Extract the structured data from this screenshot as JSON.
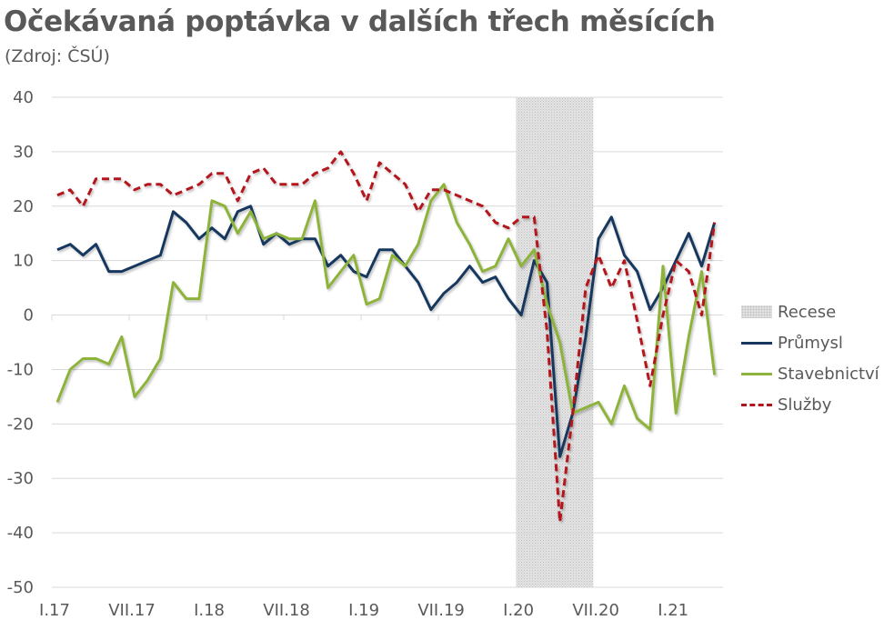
{
  "header": {
    "title": "Očekávaná poptávka v dalších třech měsících",
    "subtitle": "(Zdroj: ČSÚ)"
  },
  "legend": {
    "items": [
      {
        "key": "recese",
        "label": "Recese"
      },
      {
        "key": "prumysl",
        "label": "Průmysl"
      },
      {
        "key": "stavebnictvi",
        "label": "Stavebnictví"
      },
      {
        "key": "sluzby",
        "label": "Služby"
      }
    ]
  },
  "colors": {
    "prumysl": "#17375e",
    "stavebnictvi": "#8db33a",
    "sluzby": "#b3131b",
    "grid": "#d9d9d9",
    "recession_fill": "#e0e0e0",
    "text": "#595959"
  },
  "chart_data": {
    "type": "line",
    "title": "Očekávaná poptávka v dalších třech měsících",
    "subtitle": "(Zdroj: ČSÚ)",
    "xlabel": "",
    "ylabel": "",
    "ylim": [
      -50,
      40
    ],
    "yticks": [
      40,
      30,
      20,
      10,
      0,
      -10,
      -20,
      -30,
      -40,
      -50
    ],
    "grid": true,
    "legend_position": "right",
    "x_tick_labels": [
      "I.17",
      "VII.17",
      "I.18",
      "VII.18",
      "I.19",
      "VII.19",
      "I.20",
      "VII.20",
      "I.21"
    ],
    "x_tick_indices": [
      0,
      6,
      12,
      18,
      24,
      30,
      36,
      42,
      48
    ],
    "x": [
      "I.17",
      "II.17",
      "III.17",
      "IV.17",
      "V.17",
      "VI.17",
      "VII.17",
      "VIII.17",
      "IX.17",
      "X.17",
      "XI.17",
      "XII.17",
      "I.18",
      "II.18",
      "III.18",
      "IV.18",
      "V.18",
      "VI.18",
      "VII.18",
      "VIII.18",
      "IX.18",
      "X.18",
      "XI.18",
      "XII.18",
      "I.19",
      "II.19",
      "III.19",
      "IV.19",
      "V.19",
      "VI.19",
      "VII.19",
      "VIII.19",
      "IX.19",
      "X.19",
      "XI.19",
      "XII.19",
      "I.20",
      "II.20",
      "III.20",
      "IV.20",
      "V.20",
      "VI.20",
      "VII.20",
      "VIII.20",
      "IX.20",
      "X.20",
      "XI.20",
      "XII.20",
      "I.21",
      "II.21",
      "III.21",
      "IV.21"
    ],
    "recession": {
      "label": "Recese",
      "start_index": 35.6,
      "end_index": 41.6
    },
    "series": [
      {
        "name": "Průmysl",
        "key": "prumysl",
        "style": "solid",
        "values": [
          12,
          13,
          11,
          13,
          8,
          8,
          9,
          10,
          11,
          19,
          17,
          14,
          16,
          14,
          19,
          20,
          13,
          15,
          13,
          14,
          14,
          9,
          11,
          8,
          7,
          12,
          12,
          9,
          6,
          1,
          4,
          6,
          9,
          6,
          7,
          3,
          0,
          10,
          6,
          -26,
          -18,
          -4,
          14,
          18,
          11,
          8,
          1,
          5,
          10,
          15,
          9,
          17
        ]
      },
      {
        "name": "Stavebnictví",
        "key": "stavebnictvi",
        "style": "solid",
        "values": [
          -16,
          -10,
          -8,
          -8,
          -9,
          -4,
          -15,
          -12,
          -8,
          6,
          3,
          3,
          21,
          20,
          15,
          19,
          14,
          15,
          14,
          14,
          21,
          5,
          8,
          11,
          2,
          3,
          11,
          9,
          13,
          21,
          24,
          17,
          13,
          8,
          9,
          14,
          9,
          12,
          2,
          -5,
          -18,
          -17,
          -16,
          -20,
          -13,
          -19,
          -21,
          9,
          -18,
          -4,
          8,
          -11
        ]
      },
      {
        "name": "Služby",
        "key": "sluzby",
        "style": "dashed",
        "values": [
          22,
          23,
          20,
          25,
          25,
          25,
          23,
          24,
          24,
          22,
          23,
          24,
          26,
          26,
          21,
          26,
          27,
          24,
          24,
          24,
          26,
          27,
          30,
          26,
          21,
          28,
          26,
          24,
          19,
          23,
          23,
          22,
          21,
          20,
          17,
          16,
          18,
          18,
          -3,
          -38,
          -18,
          5,
          11,
          5,
          10,
          -1,
          -13,
          0,
          10,
          8,
          0,
          17
        ]
      }
    ]
  }
}
